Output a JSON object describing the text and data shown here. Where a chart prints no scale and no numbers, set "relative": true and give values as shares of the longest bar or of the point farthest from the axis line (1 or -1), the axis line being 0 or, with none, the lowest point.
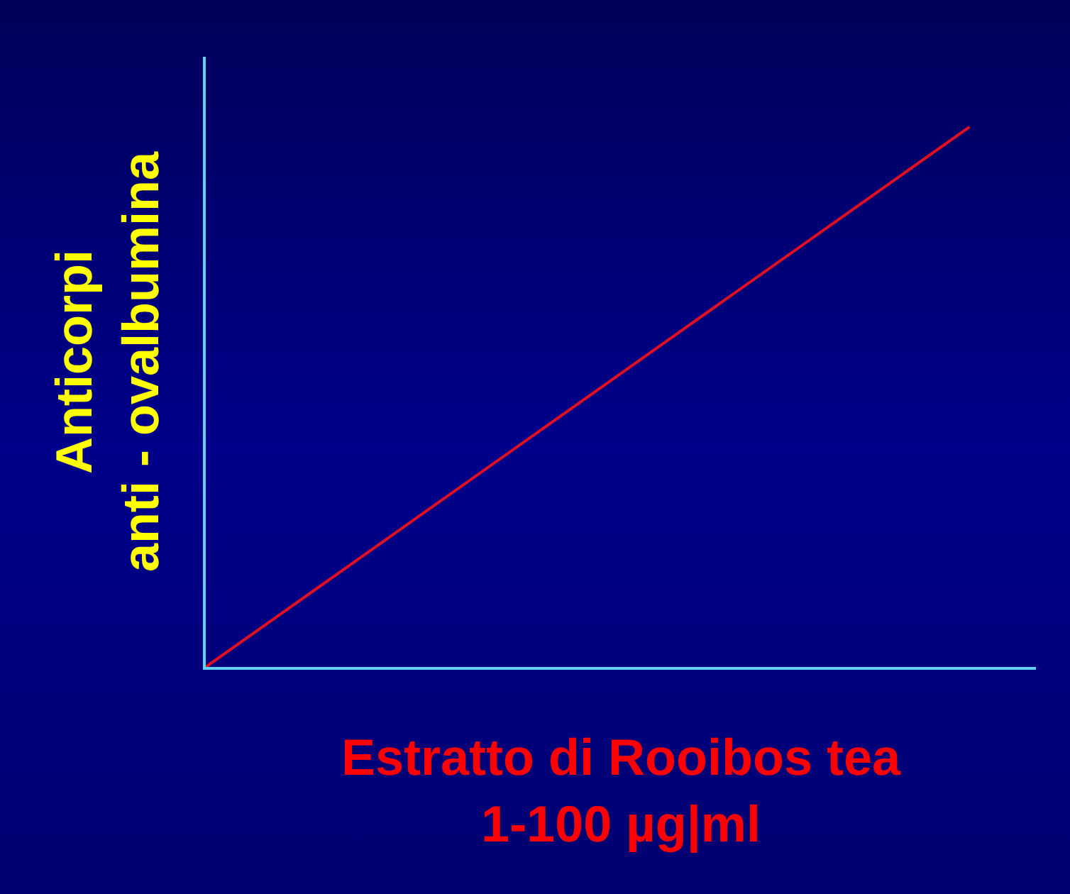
{
  "chart_data": {
    "type": "line",
    "xlabel": "Estratto di Rooibos tea\n1-100 µg|ml",
    "ylabel": "Anticorpi\nanti - ovalbumina",
    "categories": [
      null,
      null
    ],
    "relative": true,
    "series": [
      {
        "color": "#e01020",
        "values": [
          0,
          1
        ]
      }
    ]
  }
}
